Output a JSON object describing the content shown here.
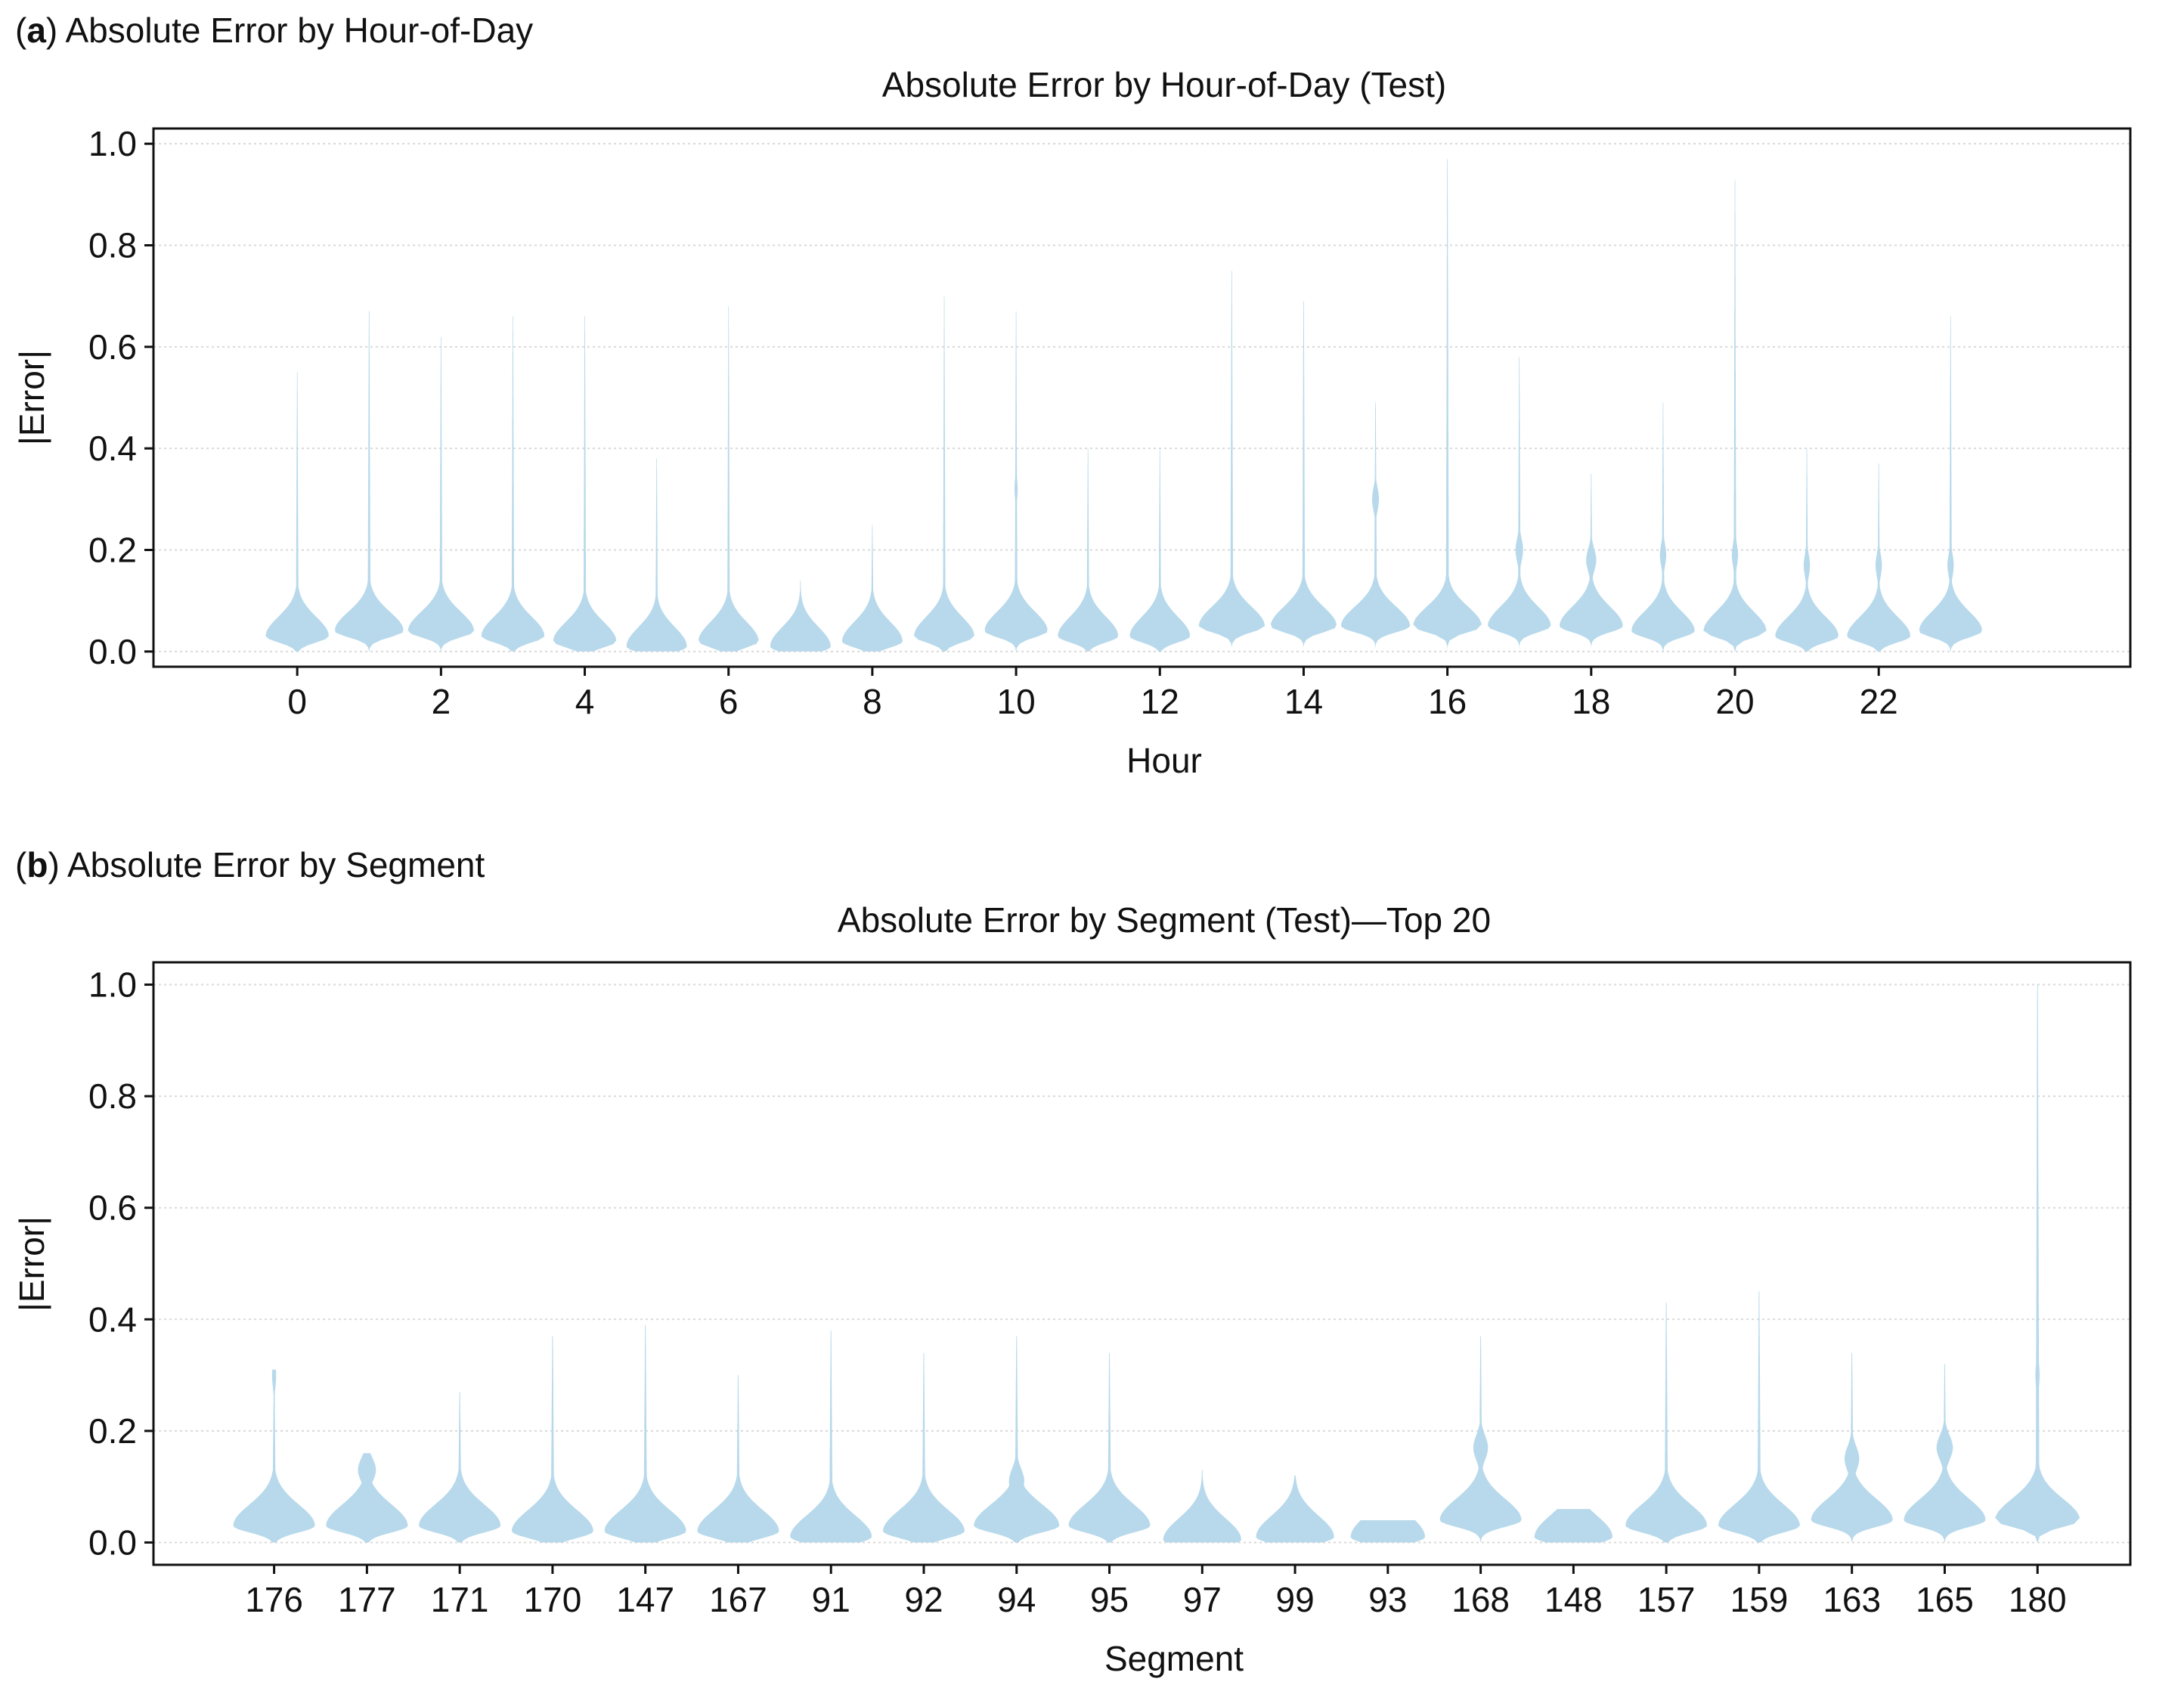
{
  "colors": {
    "violin": "#b3d7ea",
    "axis": "#111111",
    "grid": "#d9d9d9",
    "background": "#ffffff"
  },
  "chart_data": [
    {
      "type": "violin",
      "panel_letter": "a",
      "panel_label": "Absolute Error by Hour-of-Day",
      "title": "Absolute Error by Hour-of-Day (Test)",
      "xlabel": "Hour",
      "ylabel": "|Error|",
      "ylim": [
        -0.03,
        1.03
      ],
      "yticks": [
        "0.0",
        "0.2",
        "0.4",
        "0.6",
        "0.8",
        "1.0"
      ],
      "xlim": [
        -2,
        25.5
      ],
      "xticks": [
        "0",
        "2",
        "4",
        "6",
        "8",
        "10",
        "12",
        "14",
        "16",
        "18",
        "20",
        "22"
      ],
      "grid": "horizontal-dotted",
      "categories": [
        "0",
        "1",
        "2",
        "3",
        "4",
        "5",
        "6",
        "7",
        "8",
        "9",
        "10",
        "11",
        "12",
        "13",
        "14",
        "15",
        "16",
        "17",
        "18",
        "19",
        "20",
        "21",
        "22",
        "23"
      ],
      "violins": [
        {
          "x": 0,
          "max": 0.55,
          "mode": 0.03,
          "peak_halfwidth": 0.44,
          "modes": []
        },
        {
          "x": 1,
          "max": 0.67,
          "mode": 0.04,
          "peak_halfwidth": 0.48,
          "modes": []
        },
        {
          "x": 2,
          "max": 0.62,
          "mode": 0.04,
          "peak_halfwidth": 0.46,
          "modes": []
        },
        {
          "x": 3,
          "max": 0.66,
          "mode": 0.03,
          "peak_halfwidth": 0.44,
          "modes": []
        },
        {
          "x": 4,
          "max": 0.66,
          "mode": 0.02,
          "peak_halfwidth": 0.44,
          "modes": []
        },
        {
          "x": 5,
          "max": 0.38,
          "mode": 0.01,
          "peak_halfwidth": 0.42,
          "modes": []
        },
        {
          "x": 6,
          "max": 0.68,
          "mode": 0.02,
          "peak_halfwidth": 0.42,
          "modes": []
        },
        {
          "x": 7,
          "max": 0.14,
          "mode": 0.01,
          "peak_halfwidth": 0.42,
          "modes": []
        },
        {
          "x": 8,
          "max": 0.25,
          "mode": 0.02,
          "peak_halfwidth": 0.42,
          "modes": []
        },
        {
          "x": 9,
          "max": 0.7,
          "mode": 0.03,
          "peak_halfwidth": 0.42,
          "modes": []
        },
        {
          "x": 10,
          "max": 0.67,
          "mode": 0.04,
          "peak_halfwidth": 0.44,
          "modes": [
            {
              "y": 0.32,
              "w": 0.05
            }
          ]
        },
        {
          "x": 11,
          "max": 0.4,
          "mode": 0.03,
          "peak_halfwidth": 0.42,
          "modes": []
        },
        {
          "x": 12,
          "max": 0.4,
          "mode": 0.03,
          "peak_halfwidth": 0.42,
          "modes": []
        },
        {
          "x": 13,
          "max": 0.75,
          "mode": 0.05,
          "peak_halfwidth": 0.46,
          "modes": []
        },
        {
          "x": 14,
          "max": 0.69,
          "mode": 0.05,
          "peak_halfwidth": 0.46,
          "modes": []
        },
        {
          "x": 15,
          "max": 0.49,
          "mode": 0.05,
          "peak_halfwidth": 0.48,
          "modes": [
            {
              "y": 0.3,
              "w": 0.1
            }
          ]
        },
        {
          "x": 16,
          "max": 0.97,
          "mode": 0.05,
          "peak_halfwidth": 0.48,
          "modes": []
        },
        {
          "x": 17,
          "max": 0.58,
          "mode": 0.05,
          "peak_halfwidth": 0.44,
          "modes": [
            {
              "y": 0.2,
              "w": 0.12
            }
          ]
        },
        {
          "x": 18,
          "max": 0.35,
          "mode": 0.05,
          "peak_halfwidth": 0.44,
          "modes": [
            {
              "y": 0.18,
              "w": 0.16
            }
          ]
        },
        {
          "x": 19,
          "max": 0.49,
          "mode": 0.04,
          "peak_halfwidth": 0.44,
          "modes": [
            {
              "y": 0.19,
              "w": 0.1
            }
          ]
        },
        {
          "x": 20,
          "max": 0.93,
          "mode": 0.04,
          "peak_halfwidth": 0.44,
          "modes": [
            {
              "y": 0.19,
              "w": 0.1
            }
          ]
        },
        {
          "x": 21,
          "max": 0.4,
          "mode": 0.03,
          "peak_halfwidth": 0.44,
          "modes": [
            {
              "y": 0.17,
              "w": 0.1
            }
          ]
        },
        {
          "x": 22,
          "max": 0.37,
          "mode": 0.03,
          "peak_halfwidth": 0.44,
          "modes": [
            {
              "y": 0.17,
              "w": 0.1
            }
          ]
        },
        {
          "x": 23,
          "max": 0.66,
          "mode": 0.04,
          "peak_halfwidth": 0.44,
          "modes": [
            {
              "y": 0.17,
              "w": 0.1
            }
          ]
        }
      ]
    },
    {
      "type": "violin",
      "panel_letter": "b",
      "panel_label": "Absolute Error by Segment",
      "title": "Absolute Error by Segment (Test)—Top 20",
      "xlabel": "Segment",
      "ylabel": "|Error|",
      "ylim": [
        -0.04,
        1.04
      ],
      "yticks": [
        "0.0",
        "0.2",
        "0.4",
        "0.6",
        "0.8",
        "1.0"
      ],
      "xlim": [
        -1.3,
        20.0
      ],
      "grid": "horizontal-dotted",
      "categories": [
        "176",
        "177",
        "171",
        "170",
        "147",
        "167",
        "91",
        "92",
        "94",
        "95",
        "97",
        "99",
        "93",
        "168",
        "148",
        "157",
        "159",
        "163",
        "165",
        "180"
      ],
      "violins": [
        {
          "x": 0,
          "max": 0.31,
          "mode": 0.03,
          "peak_halfwidth": 0.44,
          "modes": [
            {
              "y": 0.3,
              "w": 0.05
            }
          ]
        },
        {
          "x": 1,
          "max": 0.16,
          "mode": 0.03,
          "peak_halfwidth": 0.44,
          "modes": [
            {
              "y": 0.13,
              "w": 0.22
            }
          ]
        },
        {
          "x": 2,
          "max": 0.27,
          "mode": 0.03,
          "peak_halfwidth": 0.44,
          "modes": [
            {
              "y": 0.08,
              "w": 0.18
            }
          ]
        },
        {
          "x": 3,
          "max": 0.37,
          "mode": 0.02,
          "peak_halfwidth": 0.44,
          "modes": []
        },
        {
          "x": 4,
          "max": 0.39,
          "mode": 0.02,
          "peak_halfwidth": 0.44,
          "modes": []
        },
        {
          "x": 5,
          "max": 0.3,
          "mode": 0.02,
          "peak_halfwidth": 0.44,
          "modes": []
        },
        {
          "x": 6,
          "max": 0.38,
          "mode": 0.01,
          "peak_halfwidth": 0.44,
          "modes": []
        },
        {
          "x": 7,
          "max": 0.34,
          "mode": 0.02,
          "peak_halfwidth": 0.44,
          "modes": []
        },
        {
          "x": 8,
          "max": 0.37,
          "mode": 0.03,
          "peak_halfwidth": 0.46,
          "modes": [
            {
              "y": 0.11,
              "w": 0.18
            }
          ]
        },
        {
          "x": 9,
          "max": 0.34,
          "mode": 0.03,
          "peak_halfwidth": 0.44,
          "modes": []
        },
        {
          "x": 10,
          "max": 0.13,
          "mode": 0.005,
          "peak_halfwidth": 0.42,
          "modes": []
        },
        {
          "x": 11,
          "max": 0.12,
          "mode": 0.01,
          "peak_halfwidth": 0.42,
          "modes": []
        },
        {
          "x": 12,
          "max": 0.04,
          "mode": 0.01,
          "peak_halfwidth": 0.4,
          "modes": []
        },
        {
          "x": 13,
          "max": 0.37,
          "mode": 0.04,
          "peak_halfwidth": 0.44,
          "modes": [
            {
              "y": 0.17,
              "w": 0.18
            }
          ]
        },
        {
          "x": 14,
          "max": 0.06,
          "mode": 0.01,
          "peak_halfwidth": 0.42,
          "modes": [
            {
              "y": 0.04,
              "w": 0.14
            }
          ]
        },
        {
          "x": 15,
          "max": 0.43,
          "mode": 0.03,
          "peak_halfwidth": 0.44,
          "modes": []
        },
        {
          "x": 16,
          "max": 0.45,
          "mode": 0.03,
          "peak_halfwidth": 0.44,
          "modes": []
        },
        {
          "x": 17,
          "max": 0.34,
          "mode": 0.04,
          "peak_halfwidth": 0.44,
          "modes": [
            {
              "y": 0.15,
              "w": 0.18
            }
          ]
        },
        {
          "x": 18,
          "max": 0.32,
          "mode": 0.04,
          "peak_halfwidth": 0.44,
          "modes": [
            {
              "y": 0.17,
              "w": 0.2
            }
          ]
        },
        {
          "x": 19,
          "max": 1.0,
          "mode": 0.04,
          "peak_halfwidth": 0.46,
          "modes": [
            {
              "y": 0.3,
              "w": 0.05
            }
          ]
        }
      ]
    }
  ]
}
